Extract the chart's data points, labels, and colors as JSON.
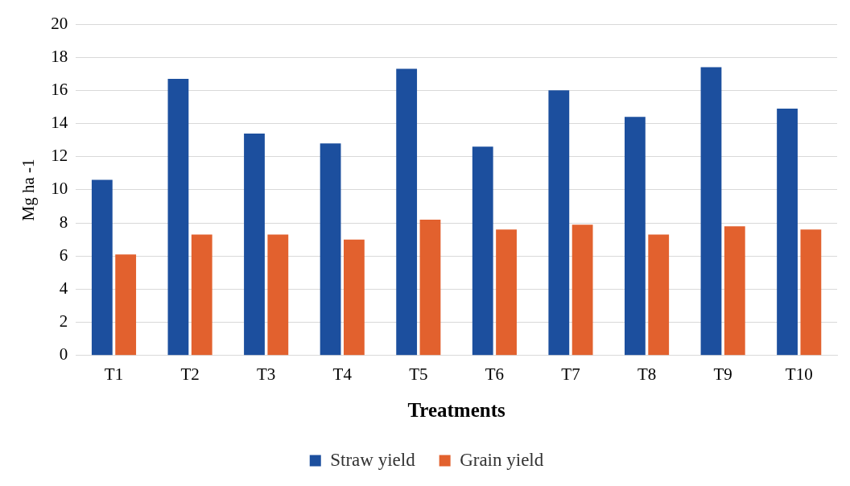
{
  "chart_data": {
    "type": "bar",
    "xlabel": "Treatments",
    "ylabel": "Mg ha -1",
    "categories": [
      "T1",
      "T2",
      "T3",
      "T4",
      "T5",
      "T6",
      "T7",
      "T8",
      "T9",
      "T10"
    ],
    "series": [
      {
        "name": "Straw yield",
        "color": "#1c4f9e",
        "values": [
          10.6,
          16.7,
          13.4,
          12.8,
          17.3,
          12.6,
          16.0,
          14.4,
          17.4,
          14.9
        ]
      },
      {
        "name": "Grain yield",
        "color": "#e2612e",
        "values": [
          6.1,
          7.3,
          7.3,
          7.0,
          8.2,
          7.6,
          7.9,
          7.3,
          7.8,
          7.6
        ]
      }
    ],
    "ylim": [
      0,
      20
    ],
    "yticks": [
      0,
      2,
      4,
      6,
      8,
      10,
      12,
      14,
      16,
      18,
      20
    ],
    "grid": "y",
    "legend": "bottom"
  }
}
